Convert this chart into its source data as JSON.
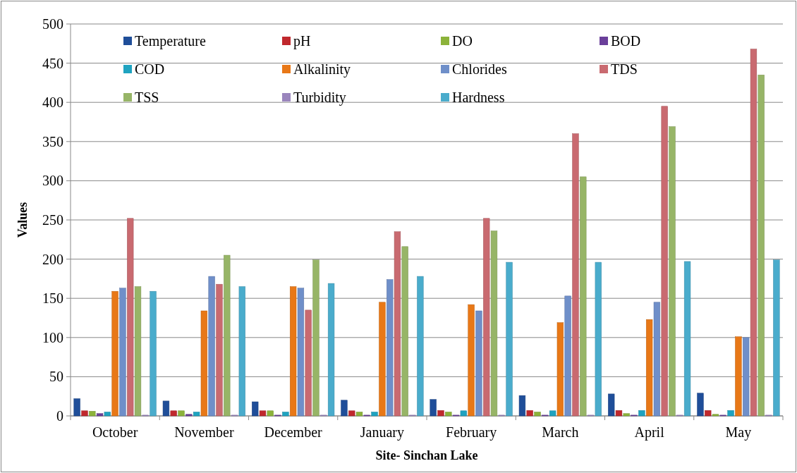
{
  "chart_data": {
    "type": "bar",
    "xlabel": "Site- Sinchan Lake",
    "ylabel": "Values",
    "categories": [
      "October",
      "November",
      "December",
      "January",
      "February",
      "March",
      "April",
      "May"
    ],
    "ylim": [
      0,
      500
    ],
    "yticks": [
      0,
      50,
      100,
      150,
      200,
      250,
      300,
      350,
      400,
      450,
      500
    ],
    "grid": "y",
    "legend": "top",
    "series": [
      {
        "name": "Temperature",
        "color": "#1f4e99",
        "values": [
          22,
          19,
          18,
          20,
          21,
          26,
          28,
          29
        ]
      },
      {
        "name": "pH",
        "color": "#c0282d",
        "values": [
          6.5,
          6.5,
          6.5,
          6.5,
          7,
          7,
          7,
          7
        ]
      },
      {
        "name": "DO",
        "color": "#8cb33a",
        "values": [
          6,
          6.5,
          6.5,
          5,
          5,
          5,
          3,
          2
        ]
      },
      {
        "name": "BOD",
        "color": "#6a3f9a",
        "values": [
          3,
          2,
          1,
          1,
          1,
          1,
          1,
          1
        ]
      },
      {
        "name": "COD",
        "color": "#1fa3c0",
        "values": [
          5,
          5,
          5,
          5,
          6.5,
          6.5,
          7,
          7
        ]
      },
      {
        "name": "Alkalinity",
        "color": "#e87817",
        "values": [
          159,
          134,
          165,
          145,
          142,
          119,
          123,
          101
        ]
      },
      {
        "name": "Chlorides",
        "color": "#6f8fc9",
        "values": [
          163,
          178,
          163,
          174,
          134,
          153,
          145,
          100
        ]
      },
      {
        "name": "TDS",
        "color": "#c96a70",
        "values": [
          252,
          168,
          135,
          235,
          252,
          360,
          395,
          468
        ]
      },
      {
        "name": "TSS",
        "color": "#97b567",
        "values": [
          165,
          205,
          199,
          216,
          236,
          305,
          369,
          435
        ]
      },
      {
        "name": "Turbidity",
        "color": "#9a85bd",
        "values": [
          1,
          1,
          1,
          1,
          1,
          1,
          1,
          1
        ]
      },
      {
        "name": "Hardness",
        "color": "#4aaccc",
        "values": [
          159,
          165,
          169,
          178,
          196,
          196,
          197,
          199
        ]
      }
    ]
  }
}
